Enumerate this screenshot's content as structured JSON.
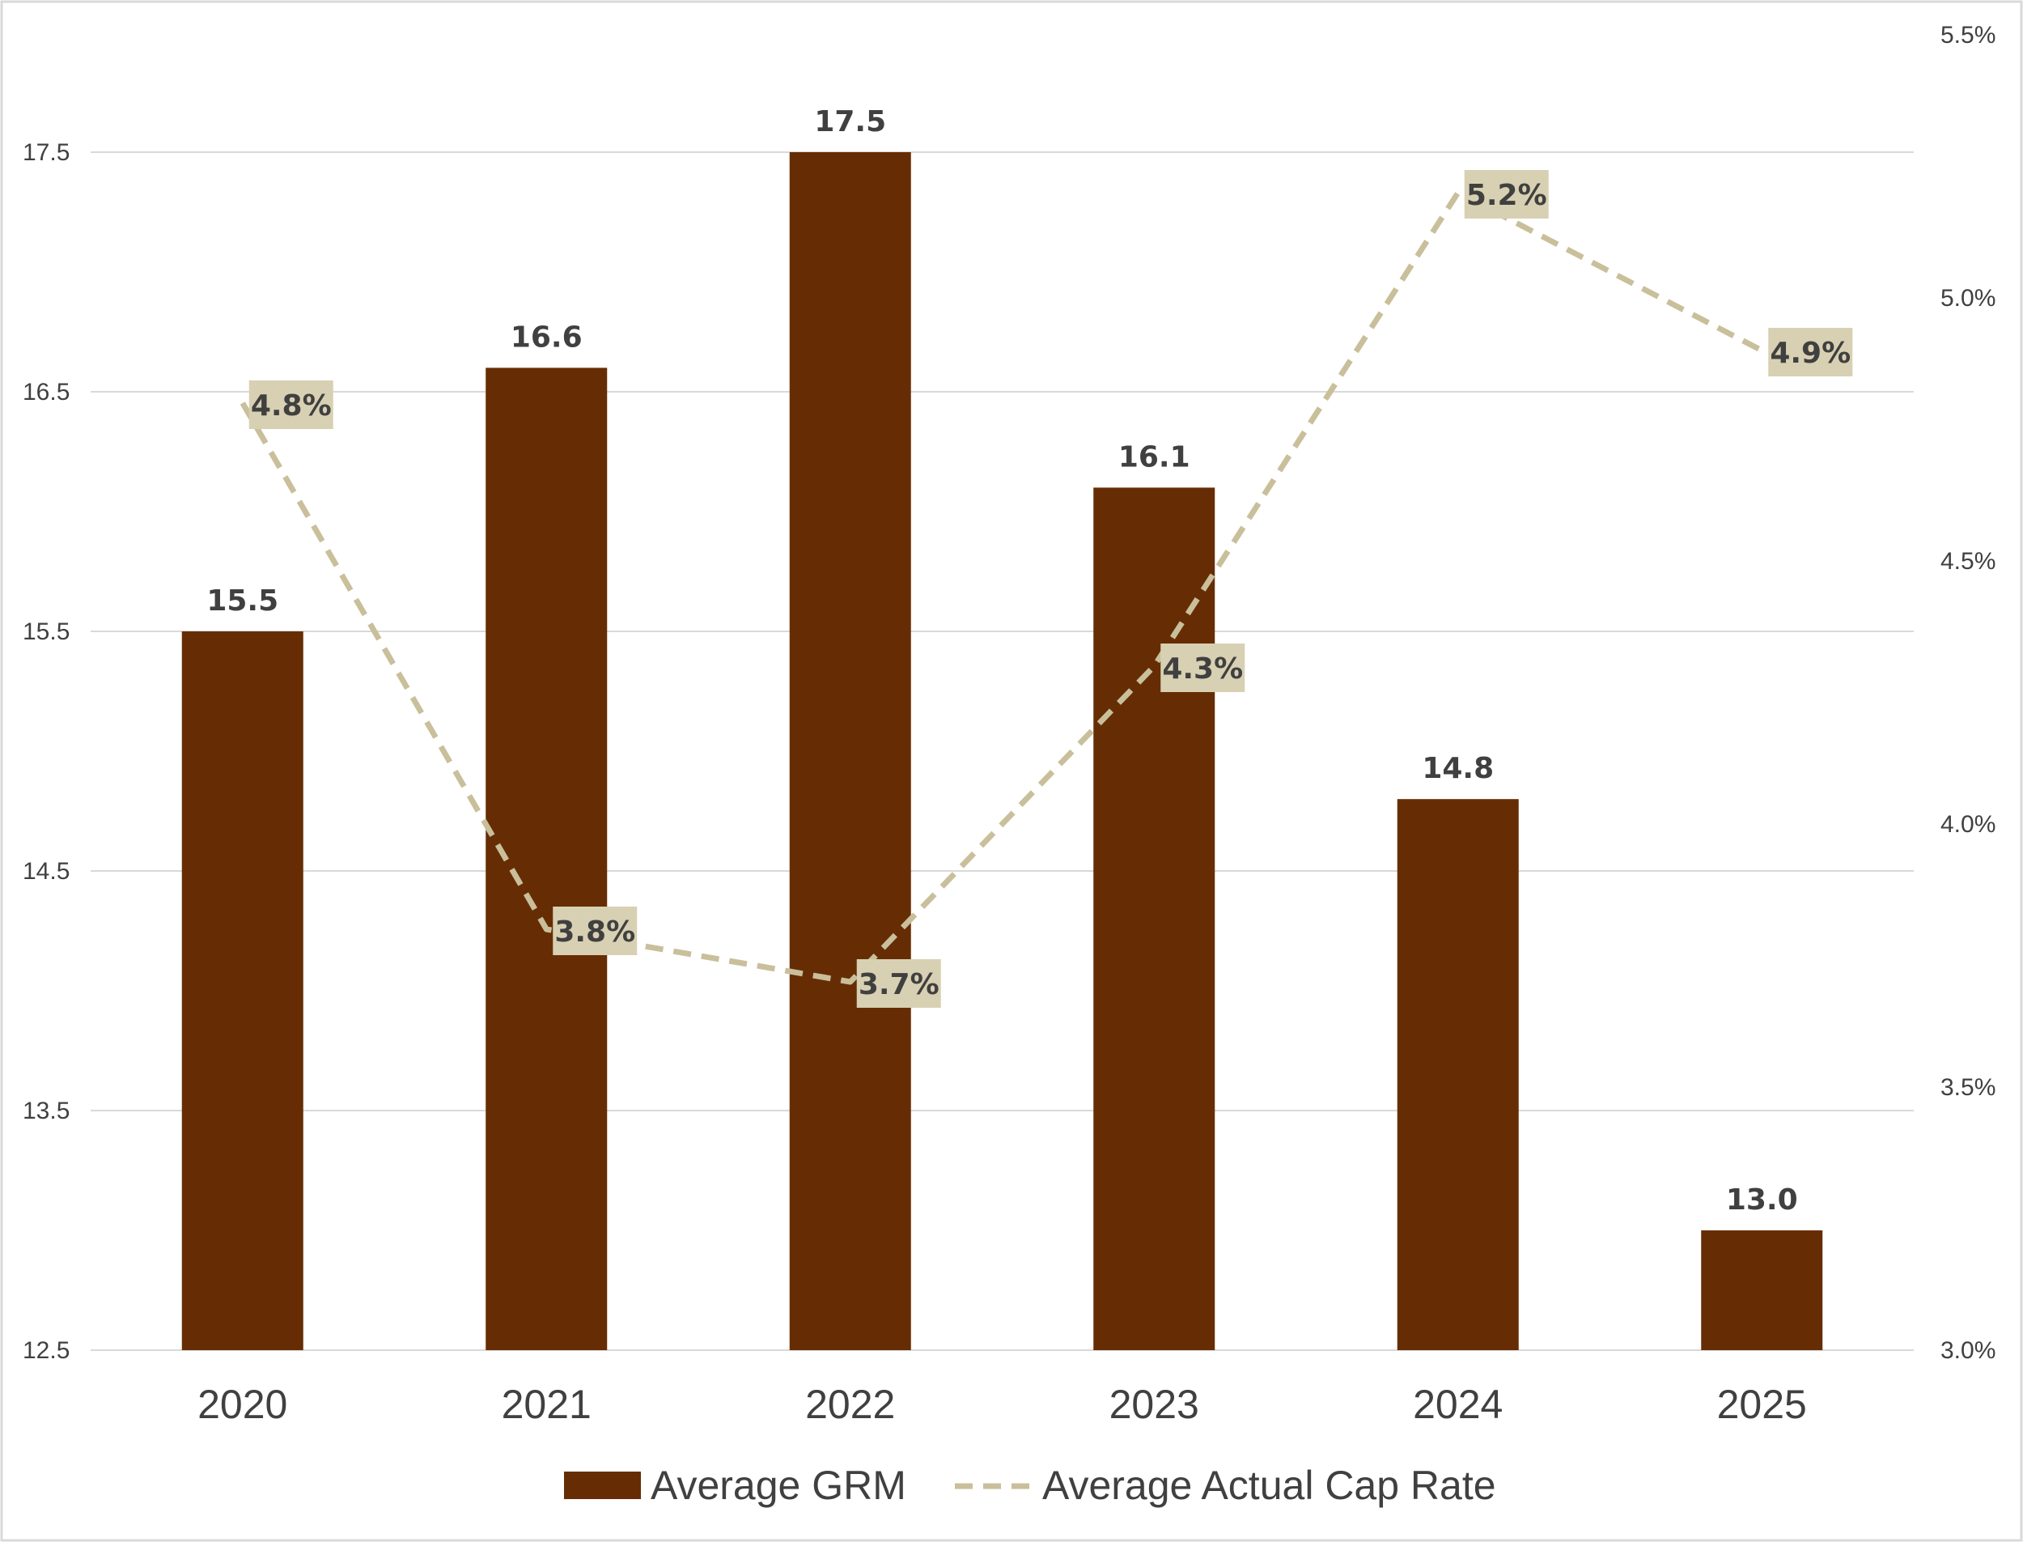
{
  "chart_data": {
    "type": "bar",
    "categories": [
      "2020",
      "2021",
      "2022",
      "2023",
      "2024",
      "2025"
    ],
    "series": [
      {
        "name": "Average GRM",
        "type": "bar",
        "axis": "left",
        "values": [
          15.5,
          16.6,
          17.5,
          16.1,
          14.8,
          13.0
        ],
        "labels": [
          "15.5",
          "16.6",
          "17.5",
          "16.1",
          "14.8",
          "13.0"
        ]
      },
      {
        "name": "Average Actual Cap Rate",
        "type": "line",
        "style": "dashed",
        "axis": "right",
        "values": [
          4.8,
          3.8,
          3.7,
          4.3,
          5.2,
          4.9
        ],
        "labels": [
          "4.8%",
          "3.8%",
          "3.7%",
          "4.3%",
          "5.2%",
          "4.9%"
        ]
      }
    ],
    "y_left": {
      "range": [
        12.5,
        18.0
      ],
      "ticks": [
        12.5,
        13.5,
        14.5,
        15.5,
        16.5,
        17.5
      ],
      "tick_labels": [
        "12.5",
        "13.5",
        "14.5",
        "15.5",
        "16.5",
        "17.5"
      ]
    },
    "y_right": {
      "range": [
        3.0,
        5.5
      ],
      "ticks": [
        3.0,
        3.5,
        4.0,
        4.5,
        5.0,
        5.5
      ],
      "tick_labels": [
        "3.0%",
        "3.5%",
        "4.0%",
        "4.5%",
        "5.0%",
        "5.5%"
      ]
    },
    "grid": true,
    "legend": "bottom",
    "colors": {
      "bar": "#662d04",
      "line": "#c9bf9b",
      "label_box": "#d8d0b2",
      "grid": "#d9d9d9",
      "text": "#404040",
      "frame": "#d9d9d9"
    }
  }
}
